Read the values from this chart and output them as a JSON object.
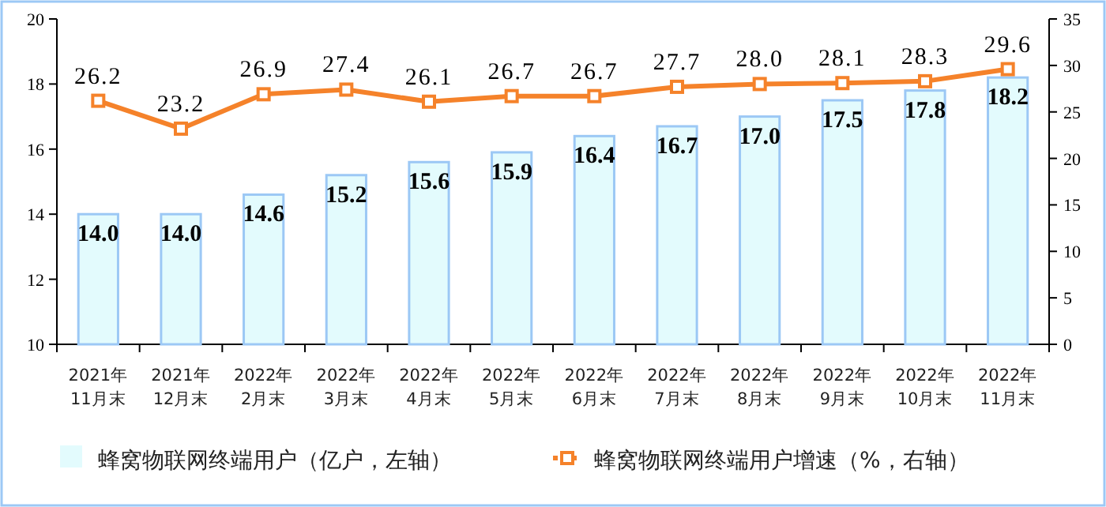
{
  "chart_data": {
    "type": "bar",
    "categories": [
      "2021年\n11月末",
      "2021年\n12月末",
      "2022年\n2月末",
      "2022年\n3月末",
      "2022年\n4月末",
      "2022年\n5月末",
      "2022年\n6月末",
      "2022年\n7月末",
      "2022年\n8月末",
      "2022年\n9月末",
      "2022年\n10月末",
      "2022年\n11月末"
    ],
    "series": [
      {
        "name": "蜂窝物联网终端用户（亿户，左轴）",
        "color": "#e3fbfd",
        "values": [
          14.0,
          14.0,
          14.6,
          15.2,
          15.6,
          15.9,
          16.4,
          16.7,
          17.0,
          17.5,
          17.8,
          18.2
        ],
        "value_labels": [
          "14.0",
          "14.0",
          "14.6",
          "15.2",
          "15.6",
          "15.9",
          "16.4",
          "16.7",
          "17.0",
          "17.5",
          "17.8",
          "18.2"
        ]
      },
      {
        "name": "蜂窝物联网终端用户增速（%，右轴）",
        "type": "line",
        "axis": "y2",
        "color": "#f5822a",
        "marker": "square",
        "values": [
          26.2,
          23.2,
          26.9,
          27.4,
          26.1,
          26.7,
          26.7,
          27.7,
          28.0,
          28.1,
          28.3,
          29.6
        ],
        "value_labels": [
          "26.2",
          "23.2",
          "26.9",
          "27.4",
          "26.1",
          "26.7",
          "26.7",
          "27.7",
          "28.0",
          "28.1",
          "28.3",
          "29.6"
        ]
      }
    ],
    "ylim": [
      10,
      20
    ],
    "yticks": [
      10,
      12,
      14,
      16,
      18,
      20
    ],
    "y2lim": [
      0,
      35
    ],
    "y2ticks": [
      0,
      5,
      10,
      15,
      20,
      25,
      30,
      35
    ],
    "legend": "bottom",
    "grid": false
  }
}
